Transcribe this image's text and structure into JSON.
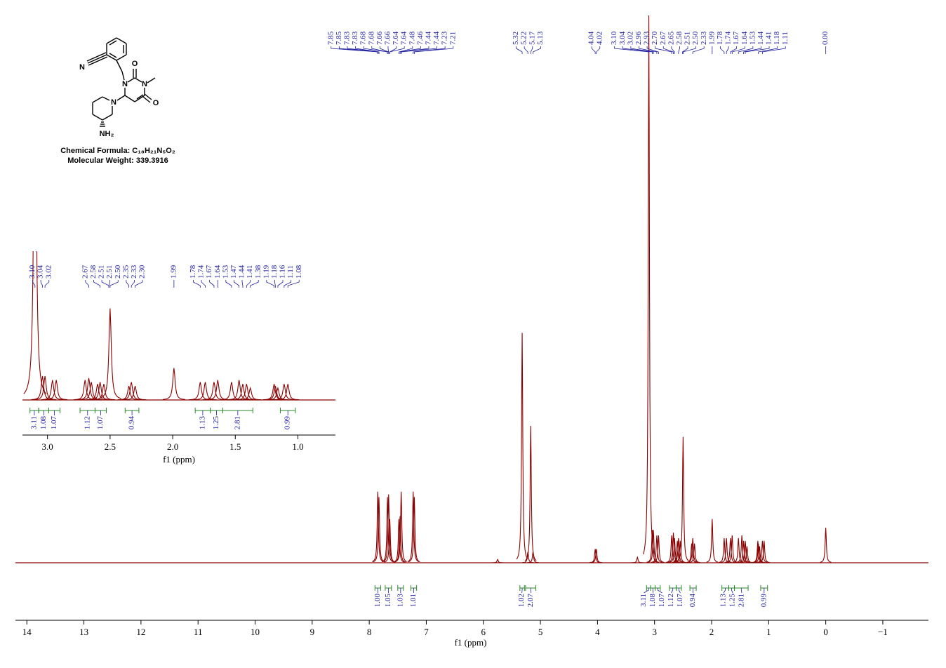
{
  "structure": {
    "atoms": [
      "N",
      "O",
      "N",
      "N",
      "O",
      "N",
      "NH₂"
    ],
    "formula": "Chemical Formula: C₁₈H₂₁N₅O₂",
    "weight": "Molecular Weight: 339.3916"
  },
  "chart_data": [
    {
      "type": "nmr",
      "xlabel": "f1 (ppm)",
      "xlim": [
        14.2,
        -1.8
      ],
      "xticks": [
        14,
        13,
        12,
        11,
        10,
        9,
        8,
        7,
        6,
        5,
        4,
        3,
        2,
        1,
        0,
        {
          "value": -1,
          "label": "−1"
        }
      ],
      "ylim": [
        0,
        100
      ],
      "color": "#8b0000",
      "signals": {
        "x": [
          7.85,
          7.83,
          7.68,
          7.66,
          7.64,
          7.48,
          7.46,
          7.44,
          7.23,
          7.21,
          5.75,
          5.32,
          5.22,
          5.17,
          5.13,
          4.04,
          4.02,
          3.3,
          3.1,
          3.04,
          3.02,
          2.96,
          2.93,
          2.7,
          2.67,
          2.65,
          2.6,
          2.58,
          2.55,
          2.5,
          2.35,
          2.33,
          2.3,
          1.99,
          1.78,
          1.74,
          1.67,
          1.64,
          1.53,
          1.47,
          1.44,
          1.41,
          1.38,
          1.19,
          1.18,
          1.16,
          1.11,
          1.08,
          0.0
        ],
        "values": [
          13,
          12,
          12,
          12.5,
          8,
          8,
          8.5,
          13,
          13,
          12,
          0.6,
          42,
          2,
          25,
          2,
          2.5,
          2.5,
          1,
          100,
          6,
          6,
          5,
          5,
          5,
          5.5,
          4.5,
          4,
          4.5,
          4,
          23,
          3.5,
          4.5,
          3.5,
          8,
          4.5,
          4.5,
          4.5,
          5,
          4.5,
          5,
          4,
          4,
          3,
          4,
          3.5,
          3,
          4,
          4,
          6.4
        ]
      },
      "peak_labels": {
        "values": [
          7.85,
          7.85,
          7.83,
          7.83,
          7.68,
          7.68,
          7.66,
          7.66,
          7.64,
          7.64,
          7.48,
          7.46,
          7.44,
          7.44,
          7.23,
          7.21,
          5.32,
          5.22,
          5.17,
          5.13,
          4.04,
          4.02,
          3.1,
          3.04,
          3.02,
          2.96,
          2.93,
          2.7,
          2.67,
          2.65,
          2.58,
          2.51,
          2.5,
          2.33,
          1.99,
          1.78,
          1.74,
          1.67,
          1.64,
          1.53,
          1.44,
          1.41,
          1.18,
          1.11,
          0.0
        ],
        "value_labels": [
          "7.85",
          "7.85",
          "7.83",
          "7.83",
          "7.68",
          "7.68",
          "7.66",
          "7.66",
          "7.64",
          "7.64",
          "7.48",
          "7.46",
          "7.44",
          "7.44",
          "7.23",
          "7.21",
          "5.32",
          "5.22",
          "5.17",
          "5.13",
          "4.04",
          "4.02",
          "3.10",
          "3.04",
          "3.02",
          "2.96",
          "2.93",
          "2.70",
          "2.67",
          "2.65",
          "2.58",
          "2.51",
          "2.50",
          "2.33",
          "1.99",
          "1.78",
          "1.74",
          "1.67",
          "1.64",
          "1.53",
          "1.44",
          "1.41",
          "1.18",
          "1.11",
          "0.00"
        ]
      },
      "integrals": {
        "from": [
          7.9,
          7.72,
          7.5,
          7.27,
          5.36,
          5.26,
          3.14,
          3.07,
          2.99,
          2.74,
          2.62,
          2.38,
          1.82,
          1.7,
          1.6,
          1.14
        ],
        "to": [
          7.8,
          7.61,
          7.4,
          7.17,
          5.28,
          5.08,
          3.07,
          2.99,
          2.9,
          2.62,
          2.53,
          2.27,
          1.7,
          1.6,
          1.36,
          1.02
        ],
        "values": [
          1.0,
          1.05,
          1.03,
          1.01,
          1.02,
          2.07,
          3.11,
          1.08,
          1.07,
          1.12,
          1.07,
          0.94,
          1.13,
          1.25,
          2.81,
          0.99
        ],
        "value_labels": [
          "1.00",
          "1.05",
          "1.03",
          "1.01",
          "1.02",
          "2.07",
          "3.11",
          "1.08",
          "1.07",
          "1.12",
          "1.07",
          "0.94",
          "1.13",
          "1.25",
          "2.81",
          "0.99"
        ]
      }
    },
    {
      "type": "nmr",
      "xlabel": "f1 (ppm)",
      "xlim": [
        3.2,
        0.7
      ],
      "xticks": [
        {
          "value": 3,
          "label": "3.0"
        },
        {
          "value": 2.5,
          "label": "2.5"
        },
        {
          "value": 2,
          "label": "2.0"
        },
        {
          "value": 1.5,
          "label": "1.5"
        },
        {
          "value": 1,
          "label": "1.0"
        }
      ],
      "ylim": [
        0,
        37
      ],
      "color": "#8b0000",
      "peak_labels": {
        "values": [
          3.1,
          3.04,
          3.02,
          2.67,
          2.58,
          2.51,
          2.51,
          2.5,
          2.35,
          2.33,
          2.3,
          1.99,
          1.78,
          1.74,
          1.67,
          1.64,
          1.53,
          1.47,
          1.44,
          1.41,
          1.38,
          1.19,
          1.18,
          1.16,
          1.11,
          1.08
        ],
        "value_labels": [
          "3.10",
          "3.04",
          "3.02",
          "2.67",
          "2.58",
          "2.51",
          "2.51",
          "2.50",
          "2.35",
          "2.33",
          "2.30",
          "1.99",
          "1.78",
          "1.74",
          "1.67",
          "1.64",
          "1.53",
          "1.47",
          "1.44",
          "1.41",
          "1.38",
          "1.19",
          "1.18",
          "1.16",
          "1.11",
          "1.08"
        ]
      },
      "integrals": {
        "from": [
          3.14,
          3.07,
          2.99,
          2.74,
          2.62,
          2.38,
          1.82,
          1.7,
          1.6,
          1.14
        ],
        "to": [
          3.07,
          2.99,
          2.9,
          2.62,
          2.53,
          2.27,
          1.7,
          1.6,
          1.36,
          1.02
        ],
        "values": [
          3.11,
          1.08,
          1.07,
          1.12,
          1.07,
          0.94,
          1.13,
          1.25,
          2.81,
          0.99
        ],
        "value_labels": [
          "3.11",
          "1.08",
          "1.07",
          "1.12",
          "1.07",
          "0.94",
          "1.13",
          "1.25",
          "2.81",
          "0.99"
        ]
      }
    }
  ]
}
